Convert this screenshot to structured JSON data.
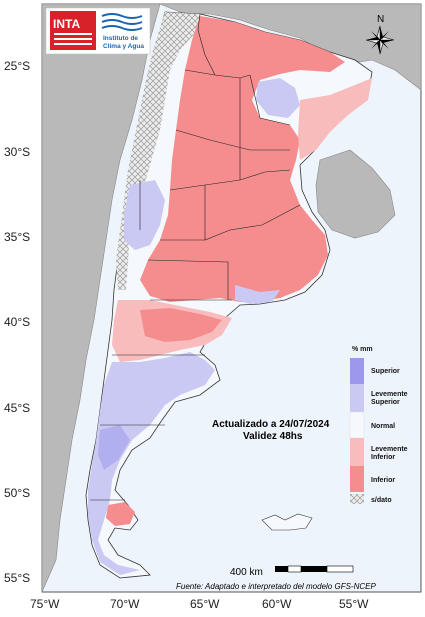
{
  "logo": {
    "inta": "INTA",
    "instituto_line1": "Instituto de",
    "instituto_line2": "Clima y Agua"
  },
  "compass": {
    "north": "N"
  },
  "lat_labels": [
    "25°S",
    "30°S",
    "35°S",
    "40°S",
    "45°S",
    "50°S",
    "55°S"
  ],
  "lon_labels": [
    "75°W",
    "70°W",
    "65°W",
    "60°W",
    "55°W"
  ],
  "legend": {
    "title": "% mm",
    "items": [
      {
        "label_lines": [
          "Superior"
        ],
        "color": "#9d99ea"
      },
      {
        "label_lines": [
          "Levemente",
          "Superior"
        ],
        "color": "#c9c9f3"
      },
      {
        "label_lines": [
          "Normal"
        ],
        "color": "#f5f8fc"
      },
      {
        "label_lines": [
          "Levemente",
          "Inferior"
        ],
        "color": "#f8bcbc"
      },
      {
        "label_lines": [
          "Inferior"
        ],
        "color": "#f58c8e"
      },
      {
        "label_lines": [
          "s/dato"
        ],
        "color": "#e8e8e8"
      }
    ]
  },
  "info": {
    "updated": "Actualizado a 24/07/2024",
    "validity": "Validez 48hs"
  },
  "scale": {
    "label": "400 km"
  },
  "source": "Fuente: Adaptado e interpretado del modelo GFS-NCEP",
  "colors": {
    "ocean": "#eef4fb",
    "neighbor_land": "#b9b9b9",
    "superior": "#9d99ea",
    "levemente_superior": "#c9c9f3",
    "normal": "#f5f8fc",
    "levemente_inferior": "#f8bcbc",
    "inferior": "#f58c8e",
    "inta_red": "#d8222a",
    "instituto_blue": "#1a66b3"
  }
}
